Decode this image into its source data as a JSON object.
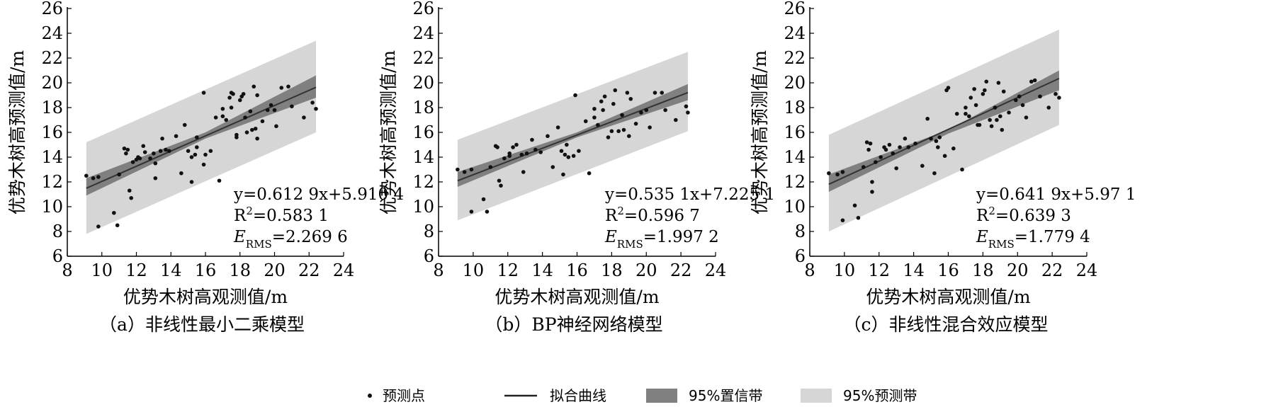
{
  "chart_data": [
    {
      "type": "scatter",
      "panel_label": "（a）非线性最小二乘模型",
      "xlabel": "优势木树高观测值/m",
      "ylabel": "优势木树高预测值/m",
      "xlim": [
        8,
        24
      ],
      "ylim": [
        6,
        26
      ],
      "x_ticks": [
        "8",
        "10",
        "12",
        "14",
        "16",
        "18",
        "20",
        "22",
        "24"
      ],
      "y_ticks": [
        "6",
        "8",
        "10",
        "12",
        "14",
        "16",
        "18",
        "20",
        "22",
        "24",
        "26"
      ],
      "fit": {
        "slope": 0.6129,
        "intercept": 5.9104,
        "x_range": [
          9.1,
          22.4
        ]
      },
      "confidence_band": {
        "x": [
          9.1,
          16.0,
          22.4
        ],
        "lower": [
          10.9,
          15.5,
          18.8
        ],
        "upper": [
          12.3,
          16.0,
          20.6
        ]
      },
      "prediction_band": {
        "x": [
          9.1,
          22.4
        ],
        "lower": [
          7.8,
          16.0
        ],
        "upper": [
          15.2,
          23.4
        ]
      },
      "annotations": [
        "y=0.612 9x+5.910 4",
        "R²=0.583 1",
        "E_RMS=2.269 6"
      ],
      "series": [
        {
          "name": "预测点",
          "points": [
            [
              9.1,
              12.5
            ],
            [
              9.5,
              12.3
            ],
            [
              9.8,
              12.4
            ],
            [
              9.8,
              8.4
            ],
            [
              10.7,
              9.5
            ],
            [
              10.9,
              8.5
            ],
            [
              11.0,
              12.6
            ],
            [
              11.3,
              14.7
            ],
            [
              11.4,
              14.3
            ],
            [
              11.5,
              14.6
            ],
            [
              11.6,
              11.3
            ],
            [
              11.7,
              10.7
            ],
            [
              11.8,
              13.6
            ],
            [
              12.0,
              13.8
            ],
            [
              12.1,
              14.0
            ],
            [
              12.2,
              13.9
            ],
            [
              12.4,
              14.9
            ],
            [
              12.5,
              14.4
            ],
            [
              12.8,
              13.9
            ],
            [
              13.0,
              14.3
            ],
            [
              13.1,
              12.3
            ],
            [
              13.1,
              13.5
            ],
            [
              13.4,
              14.5
            ],
            [
              13.5,
              15.5
            ],
            [
              13.7,
              14.6
            ],
            [
              13.9,
              14.5
            ],
            [
              14.3,
              15.7
            ],
            [
              14.6,
              12.7
            ],
            [
              14.8,
              16.6
            ],
            [
              15.0,
              14.5
            ],
            [
              15.2,
              14.0
            ],
            [
              15.2,
              12.0
            ],
            [
              15.4,
              14.2
            ],
            [
              15.5,
              15.6
            ],
            [
              15.5,
              14.8
            ],
            [
              15.9,
              13.4
            ],
            [
              15.9,
              19.2
            ],
            [
              16.0,
              14.2
            ],
            [
              16.3,
              14.5
            ],
            [
              16.6,
              17.2
            ],
            [
              16.8,
              12.1
            ],
            [
              17.0,
              17.9
            ],
            [
              17.0,
              17.3
            ],
            [
              17.2,
              17.0
            ],
            [
              17.4,
              18.8
            ],
            [
              17.5,
              19.2
            ],
            [
              17.5,
              18.0
            ],
            [
              17.6,
              19.1
            ],
            [
              17.8,
              15.6
            ],
            [
              17.8,
              15.8
            ],
            [
              18.0,
              18.6
            ],
            [
              18.1,
              18.9
            ],
            [
              18.2,
              19.1
            ],
            [
              18.3,
              17.2
            ],
            [
              18.4,
              16.0
            ],
            [
              18.6,
              17.7
            ],
            [
              18.7,
              16.2
            ],
            [
              18.8,
              19.7
            ],
            [
              18.9,
              16.3
            ],
            [
              19.0,
              15.5
            ],
            [
              19.0,
              19.0
            ],
            [
              19.3,
              16.9
            ],
            [
              19.6,
              17.8
            ],
            [
              19.8,
              18.2
            ],
            [
              20.0,
              17.8
            ],
            [
              20.1,
              16.5
            ],
            [
              20.4,
              19.6
            ],
            [
              20.8,
              19.7
            ],
            [
              21.0,
              18.1
            ],
            [
              21.7,
              17.2
            ],
            [
              22.2,
              18.4
            ],
            [
              22.4,
              17.9
            ]
          ]
        }
      ]
    },
    {
      "type": "scatter",
      "panel_label": "（b）BP神经网络模型",
      "xlabel": "优势木树高观测值/m",
      "ylabel": "优势木树高预测值/m",
      "xlim": [
        8,
        24
      ],
      "ylim": [
        6,
        26
      ],
      "x_ticks": [
        "8",
        "10",
        "12",
        "14",
        "16",
        "18",
        "20",
        "22",
        "24"
      ],
      "y_ticks": [
        "6",
        "8",
        "10",
        "12",
        "14",
        "16",
        "18",
        "20",
        "22",
        "24",
        "26"
      ],
      "fit": {
        "slope": 0.5351,
        "intercept": 7.2251,
        "x_range": [
          9.1,
          22.4
        ]
      },
      "confidence_band": {
        "x": [
          9.1,
          16.0,
          22.4
        ],
        "lower": [
          11.6,
          15.6,
          18.6
        ],
        "upper": [
          12.8,
          16.0,
          19.9
        ]
      },
      "prediction_band": {
        "x": [
          9.1,
          22.4
        ],
        "lower": [
          8.9,
          16.1
        ],
        "upper": [
          15.4,
          22.5
        ]
      },
      "annotations": [
        "y=0.535 1x+7.225 1",
        "R²=0.596 7",
        "E_RMS=1.997 2"
      ],
      "series": [
        {
          "name": "预测点",
          "points": [
            [
              9.1,
              13.0
            ],
            [
              9.5,
              12.8
            ],
            [
              9.9,
              13.0
            ],
            [
              9.9,
              9.6
            ],
            [
              10.6,
              10.6
            ],
            [
              10.8,
              9.6
            ],
            [
              11.0,
              13.2
            ],
            [
              11.3,
              14.9
            ],
            [
              11.4,
              14.8
            ],
            [
              11.5,
              12.1
            ],
            [
              11.6,
              11.7
            ],
            [
              11.8,
              13.9
            ],
            [
              12.1,
              14.3
            ],
            [
              12.1,
              14.1
            ],
            [
              12.3,
              14.8
            ],
            [
              12.5,
              15.0
            ],
            [
              12.8,
              14.2
            ],
            [
              12.9,
              12.8
            ],
            [
              13.1,
              14.3
            ],
            [
              13.4,
              15.4
            ],
            [
              13.6,
              14.6
            ],
            [
              13.9,
              14.4
            ],
            [
              14.3,
              15.7
            ],
            [
              14.6,
              13.2
            ],
            [
              14.9,
              16.4
            ],
            [
              15.1,
              14.5
            ],
            [
              15.2,
              12.6
            ],
            [
              15.3,
              14.2
            ],
            [
              15.4,
              15.0
            ],
            [
              15.5,
              14.0
            ],
            [
              15.8,
              14.1
            ],
            [
              15.9,
              19.0
            ],
            [
              16.1,
              14.5
            ],
            [
              16.5,
              16.9
            ],
            [
              16.7,
              12.7
            ],
            [
              17.0,
              17.9
            ],
            [
              17.0,
              17.2
            ],
            [
              17.2,
              16.6
            ],
            [
              17.4,
              18.5
            ],
            [
              17.5,
              17.8
            ],
            [
              17.6,
              18.9
            ],
            [
              17.8,
              15.6
            ],
            [
              18.0,
              16.1
            ],
            [
              18.1,
              18.3
            ],
            [
              18.2,
              19.4
            ],
            [
              18.4,
              16.1
            ],
            [
              18.6,
              17.4
            ],
            [
              18.7,
              16.2
            ],
            [
              18.9,
              19.2
            ],
            [
              19.0,
              15.7
            ],
            [
              19.1,
              18.7
            ],
            [
              19.4,
              16.7
            ],
            [
              19.7,
              17.6
            ],
            [
              20.0,
              17.8
            ],
            [
              20.2,
              16.4
            ],
            [
              20.5,
              19.2
            ],
            [
              20.9,
              19.2
            ],
            [
              21.1,
              17.8
            ],
            [
              21.7,
              17.0
            ],
            [
              22.3,
              18.1
            ],
            [
              22.4,
              17.6
            ]
          ]
        }
      ]
    },
    {
      "type": "scatter",
      "panel_label": "（c）非线性混合效应模型",
      "xlabel": "优势木树高观测值/m",
      "ylabel": "优势木树高预测值/m",
      "xlim": [
        8,
        24
      ],
      "ylim": [
        6,
        26
      ],
      "x_ticks": [
        "8",
        "10",
        "12",
        "14",
        "16",
        "18",
        "20",
        "22",
        "24"
      ],
      "y_ticks": [
        "6",
        "8",
        "10",
        "12",
        "14",
        "16",
        "18",
        "20",
        "22",
        "24",
        "26"
      ],
      "fit": {
        "slope": 0.6419,
        "intercept": 5.97,
        "x_range": [
          9.1,
          22.4
        ]
      },
      "confidence_band": {
        "x": [
          9.1,
          16.0,
          22.4
        ],
        "lower": [
          11.2,
          15.9,
          19.4
        ],
        "upper": [
          12.6,
          16.2,
          21.0
        ]
      },
      "prediction_band": {
        "x": [
          9.1,
          22.4
        ],
        "lower": [
          8.0,
          16.6
        ],
        "upper": [
          15.8,
          24.3
        ]
      },
      "annotations": [
        "y=0.641 9x+5.97 1",
        "R²=0.639 3",
        "E_RMS=1.779 4"
      ],
      "series": [
        {
          "name": "预测点",
          "points": [
            [
              9.1,
              12.7
            ],
            [
              9.6,
              12.6
            ],
            [
              9.9,
              12.8
            ],
            [
              9.9,
              8.9
            ],
            [
              10.6,
              10.1
            ],
            [
              10.8,
              9.1
            ],
            [
              11.1,
              13.2
            ],
            [
              11.3,
              15.2
            ],
            [
              11.4,
              14.6
            ],
            [
              11.5,
              15.1
            ],
            [
              11.6,
              12.0
            ],
            [
              11.6,
              11.2
            ],
            [
              11.8,
              13.6
            ],
            [
              12.1,
              14.0
            ],
            [
              12.3,
              14.8
            ],
            [
              12.4,
              14.6
            ],
            [
              12.6,
              15.0
            ],
            [
              12.8,
              14.3
            ],
            [
              13.0,
              13.1
            ],
            [
              13.2,
              14.8
            ],
            [
              13.5,
              15.5
            ],
            [
              13.7,
              14.8
            ],
            [
              14.1,
              15.1
            ],
            [
              14.5,
              13.3
            ],
            [
              14.8,
              17.1
            ],
            [
              15.0,
              15.5
            ],
            [
              15.2,
              12.7
            ],
            [
              15.3,
              15.3
            ],
            [
              15.4,
              14.8
            ],
            [
              15.5,
              15.6
            ],
            [
              15.8,
              14.1
            ],
            [
              15.9,
              19.4
            ],
            [
              16.0,
              19.6
            ],
            [
              16.3,
              14.7
            ],
            [
              16.5,
              17.5
            ],
            [
              16.8,
              13.0
            ],
            [
              17.0,
              18.0
            ],
            [
              17.0,
              17.5
            ],
            [
              17.2,
              17.3
            ],
            [
              17.3,
              18.8
            ],
            [
              17.5,
              19.5
            ],
            [
              17.6,
              18.2
            ],
            [
              17.7,
              16.6
            ],
            [
              17.8,
              16.6
            ],
            [
              18.0,
              19.1
            ],
            [
              18.1,
              19.4
            ],
            [
              18.2,
              20.1
            ],
            [
              18.4,
              17.0
            ],
            [
              18.5,
              16.5
            ],
            [
              18.7,
              18.0
            ],
            [
              18.8,
              17.0
            ],
            [
              18.9,
              20.0
            ],
            [
              19.0,
              17.3
            ],
            [
              19.1,
              16.2
            ],
            [
              19.2,
              19.3
            ],
            [
              19.5,
              17.6
            ],
            [
              19.9,
              18.6
            ],
            [
              20.1,
              18.9
            ],
            [
              20.3,
              18.2
            ],
            [
              20.5,
              17.2
            ],
            [
              20.8,
              20.1
            ],
            [
              21.0,
              20.2
            ],
            [
              21.3,
              18.9
            ],
            [
              21.8,
              18.0
            ],
            [
              22.2,
              19.1
            ],
            [
              22.4,
              18.8
            ]
          ]
        }
      ]
    }
  ],
  "legend": [
    {
      "label": "预测点",
      "kind": "point",
      "color": "#111111"
    },
    {
      "label": "拟合曲线",
      "kind": "line",
      "color": "#222222"
    },
    {
      "label": "95%置信带",
      "kind": "swatch",
      "color": "#808080"
    },
    {
      "label": "95%预测带",
      "kind": "swatch",
      "color": "#d6d6d6"
    }
  ],
  "colors": {
    "prediction_band": "#d6d6d6",
    "confidence_band": "#808080",
    "fit_line": "#333333",
    "points": "#111111",
    "axis": "#000000"
  }
}
